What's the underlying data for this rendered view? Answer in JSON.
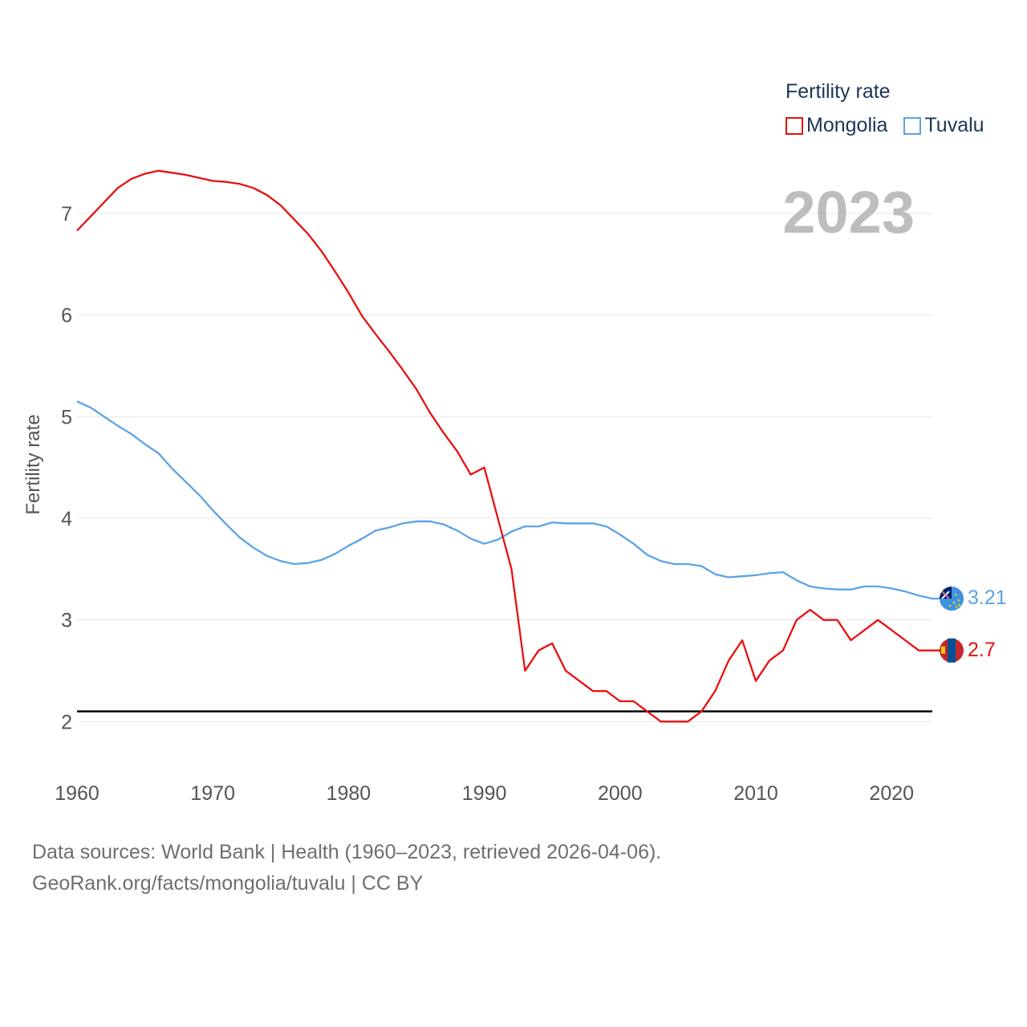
{
  "chart_data": {
    "type": "line",
    "title": "",
    "year_label": "2023",
    "xlabel": "",
    "ylabel": "Fertility rate",
    "legend_title": "Fertility rate",
    "legend_position": "top-right",
    "xlim": [
      1960,
      2023
    ],
    "ylim": [
      1.6,
      7.6
    ],
    "xticks": [
      1960,
      1970,
      1980,
      1990,
      2000,
      2010,
      2020
    ],
    "yticks": [
      2,
      3,
      4,
      5,
      6,
      7
    ],
    "grid": true,
    "reference_line": 2.1,
    "x": [
      1960,
      1961,
      1962,
      1963,
      1964,
      1965,
      1966,
      1967,
      1968,
      1969,
      1970,
      1971,
      1972,
      1973,
      1974,
      1975,
      1976,
      1977,
      1978,
      1979,
      1980,
      1981,
      1982,
      1983,
      1984,
      1985,
      1986,
      1987,
      1988,
      1989,
      1990,
      1991,
      1992,
      1993,
      1994,
      1995,
      1996,
      1997,
      1998,
      1999,
      2000,
      2001,
      2002,
      2003,
      2004,
      2005,
      2006,
      2007,
      2008,
      2009,
      2010,
      2011,
      2012,
      2013,
      2014,
      2015,
      2016,
      2017,
      2018,
      2019,
      2020,
      2021,
      2022,
      2023
    ],
    "series": [
      {
        "name": "Mongolia",
        "color": "#e8100f",
        "end_label": "2.7",
        "flag": "mongolia-flag-icon",
        "values": [
          6.83,
          6.97,
          7.11,
          7.25,
          7.34,
          7.39,
          7.42,
          7.4,
          7.38,
          7.35,
          7.32,
          7.31,
          7.29,
          7.25,
          7.18,
          7.08,
          6.94,
          6.8,
          6.63,
          6.43,
          6.22,
          5.99,
          5.81,
          5.64,
          5.46,
          5.27,
          5.04,
          4.84,
          4.66,
          4.43,
          4.5,
          4.0,
          3.5,
          2.5,
          2.7,
          2.77,
          2.5,
          2.4,
          2.3,
          2.3,
          2.2,
          2.2,
          2.1,
          2.0,
          2.0,
          2.0,
          2.1,
          2.3,
          2.6,
          2.8,
          2.4,
          2.6,
          2.7,
          3.0,
          3.1,
          3.0,
          3.0,
          2.8,
          2.9,
          3.0,
          2.9,
          2.8,
          2.7,
          2.7
        ]
      },
      {
        "name": "Tuvalu",
        "color": "#5ba3e6",
        "end_label": "3.21",
        "flag": "tuvalu-flag-icon",
        "values": [
          5.15,
          5.09,
          5.0,
          4.91,
          4.83,
          4.73,
          4.64,
          4.49,
          4.36,
          4.23,
          4.08,
          3.94,
          3.81,
          3.71,
          3.63,
          3.58,
          3.55,
          3.56,
          3.59,
          3.65,
          3.73,
          3.8,
          3.88,
          3.91,
          3.95,
          3.97,
          3.97,
          3.94,
          3.88,
          3.8,
          3.75,
          3.79,
          3.87,
          3.92,
          3.92,
          3.96,
          3.95,
          3.95,
          3.95,
          3.92,
          3.84,
          3.75,
          3.64,
          3.58,
          3.55,
          3.55,
          3.53,
          3.45,
          3.42,
          3.43,
          3.44,
          3.46,
          3.47,
          3.39,
          3.33,
          3.31,
          3.3,
          3.3,
          3.33,
          3.33,
          3.31,
          3.28,
          3.24,
          3.21
        ]
      }
    ]
  },
  "footer": {
    "line1": "Data sources: World Bank | Health (1960–2023, retrieved 2026-04-06).",
    "line2": "GeoRank.org/facts/mongolia/tuvalu | CC BY"
  }
}
